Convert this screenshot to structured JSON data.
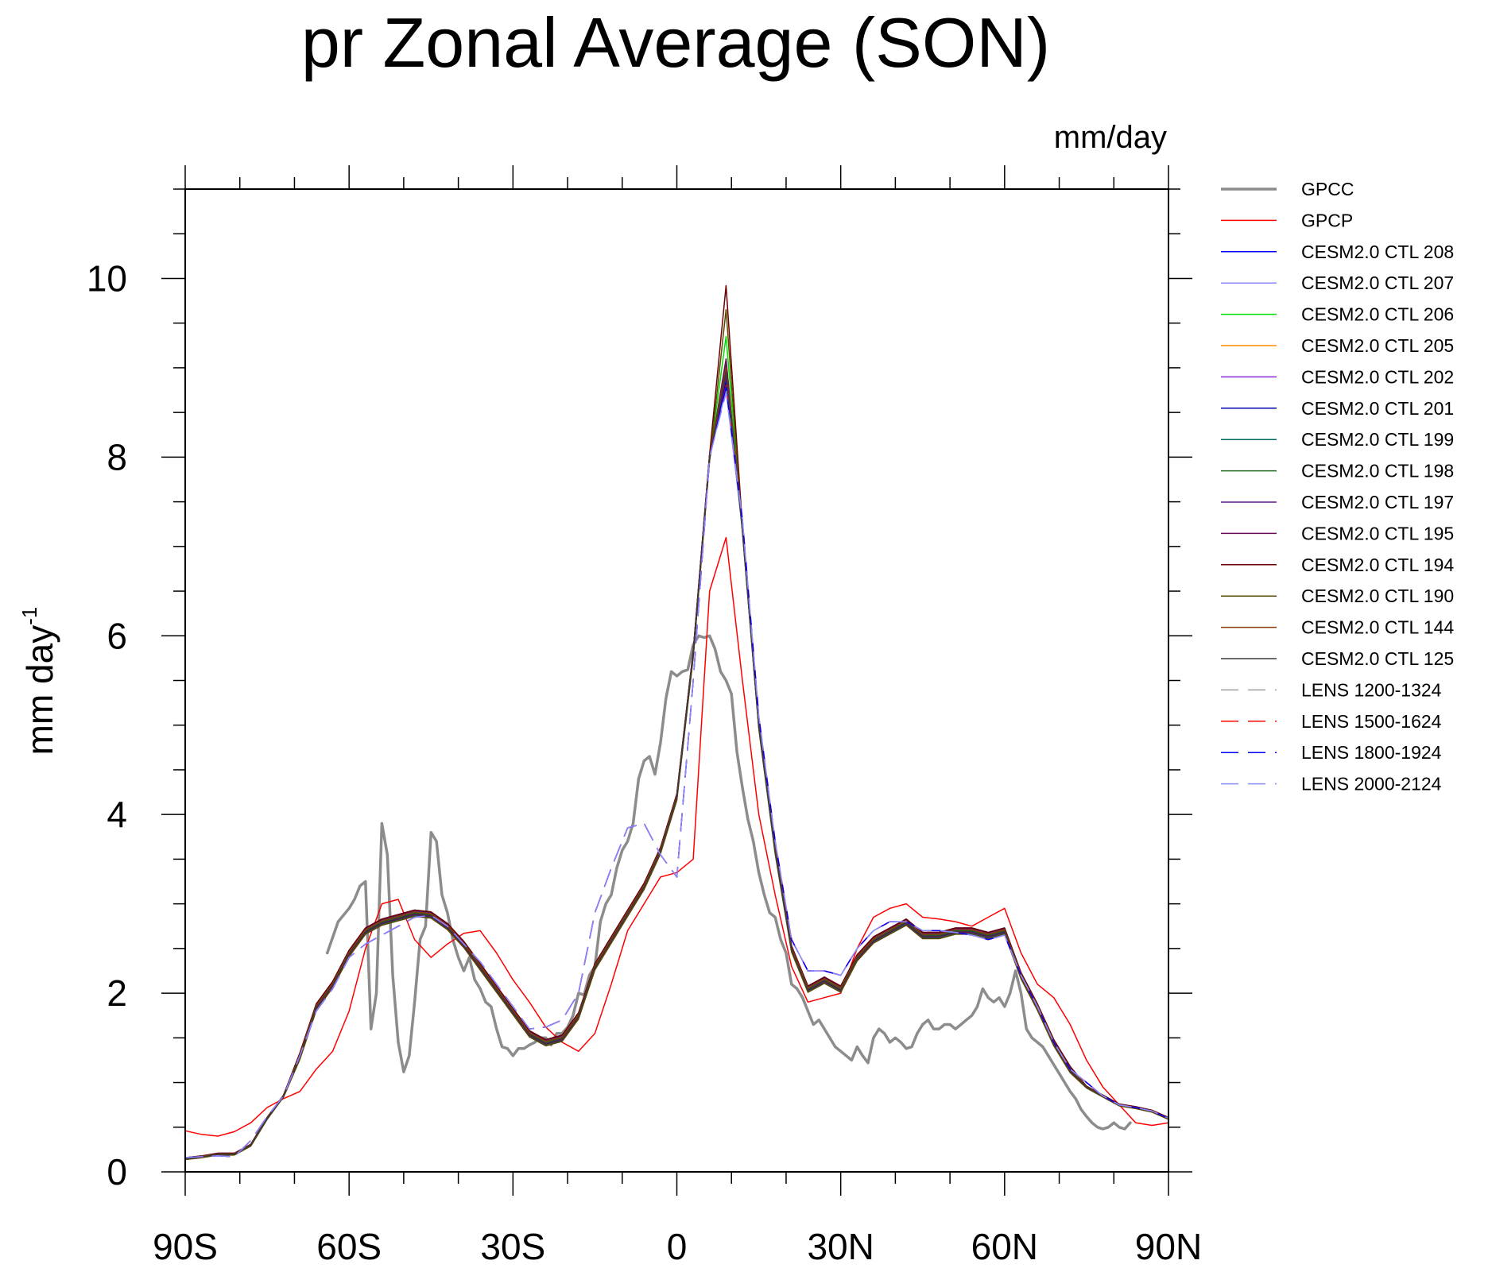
{
  "chart_data": {
    "type": "line",
    "title": "pr Zonal Average (SON)",
    "units": "mm/day",
    "ylabel_main": "mm day",
    "ylabel_sup": "-1",
    "xlabel": "",
    "xlim": [
      -90,
      90
    ],
    "ylim": [
      0,
      11
    ],
    "x_ticks": [
      -90,
      -60,
      -30,
      0,
      30,
      60,
      90
    ],
    "x_tick_labels": [
      "90S",
      "60S",
      "30S",
      "0",
      "30N",
      "60N",
      "90N"
    ],
    "y_ticks": [
      0,
      2,
      4,
      6,
      8,
      10
    ],
    "y_tick_labels": [
      "0",
      "2",
      "4",
      "6",
      "8",
      "10"
    ],
    "legend_position": "right",
    "series": [
      {
        "name": "GPCC",
        "color": "#8c8c8c",
        "width": 3.5,
        "dash": "solid",
        "x": [
          -64,
          -62,
          -60,
          -59,
          -58,
          -57,
          -56,
          -55,
          -54,
          -53,
          -52,
          -51,
          -50,
          -49,
          -48,
          -47,
          -46,
          -45,
          -44,
          -43,
          -42,
          -41,
          -40,
          -39,
          -38,
          -37,
          -36,
          -35,
          -34,
          -33,
          -32,
          -31,
          -30,
          -29,
          -28,
          -27,
          -26,
          -25,
          -24,
          -23,
          -22,
          -21,
          -20,
          -19,
          -18,
          -17,
          -16,
          -15,
          -14,
          -13,
          -12,
          -11,
          -10,
          -9,
          -8,
          -7,
          -6,
          -5,
          -4,
          -3,
          -2,
          -1,
          0,
          1,
          2,
          3,
          4,
          5,
          6,
          7,
          8,
          9,
          10,
          11,
          12,
          13,
          14,
          15,
          16,
          17,
          18,
          19,
          20,
          21,
          22,
          23,
          24,
          25,
          26,
          27,
          28,
          29,
          30,
          31,
          32,
          33,
          34,
          35,
          36,
          37,
          38,
          39,
          40,
          41,
          42,
          43,
          44,
          45,
          46,
          47,
          48,
          49,
          50,
          51,
          52,
          53,
          54,
          55,
          56,
          57,
          58,
          59,
          60,
          61,
          62,
          63,
          64,
          65,
          66,
          67,
          68,
          69,
          70,
          71,
          72,
          73,
          74,
          75,
          76,
          77,
          78,
          79,
          80,
          81,
          82,
          83
        ],
        "y": [
          2.45,
          2.8,
          2.95,
          3.05,
          3.2,
          3.25,
          1.6,
          2.0,
          3.9,
          3.55,
          2.2,
          1.45,
          1.12,
          1.3,
          1.9,
          2.6,
          2.75,
          3.8,
          3.7,
          3.1,
          2.9,
          2.6,
          2.4,
          2.25,
          2.4,
          2.15,
          2.05,
          1.9,
          1.85,
          1.6,
          1.4,
          1.38,
          1.3,
          1.38,
          1.38,
          1.42,
          1.45,
          1.5,
          1.5,
          1.42,
          1.55,
          1.55,
          1.62,
          1.75,
          2.0,
          1.98,
          2.2,
          2.3,
          2.8,
          3.0,
          3.1,
          3.4,
          3.6,
          3.7,
          3.9,
          4.4,
          4.6,
          4.65,
          4.45,
          4.8,
          5.3,
          5.6,
          5.55,
          5.6,
          5.62,
          5.9,
          6.0,
          5.98,
          6.0,
          5.85,
          5.6,
          5.5,
          5.35,
          4.7,
          4.3,
          3.95,
          3.7,
          3.35,
          3.1,
          2.9,
          2.85,
          2.6,
          2.45,
          2.1,
          2.05,
          1.95,
          1.8,
          1.65,
          1.7,
          1.6,
          1.5,
          1.4,
          1.35,
          1.3,
          1.25,
          1.4,
          1.3,
          1.22,
          1.5,
          1.6,
          1.55,
          1.45,
          1.5,
          1.45,
          1.38,
          1.4,
          1.55,
          1.65,
          1.7,
          1.6,
          1.6,
          1.65,
          1.65,
          1.6,
          1.65,
          1.7,
          1.75,
          1.85,
          2.05,
          1.95,
          1.9,
          1.95,
          1.85,
          2.0,
          2.25,
          2.0,
          1.6,
          1.5,
          1.45,
          1.4,
          1.3,
          1.2,
          1.1,
          1.0,
          0.9,
          0.82,
          0.7,
          0.62,
          0.55,
          0.5,
          0.48,
          0.5,
          0.55,
          0.5,
          0.48,
          0.55
        ]
      },
      {
        "name": "GPCP",
        "color": "#ff0000",
        "width": 1.5,
        "dash": "solid",
        "x": [
          -90,
          -87,
          -84,
          -81,
          -78,
          -75,
          -72,
          -69,
          -66,
          -63,
          -60,
          -57,
          -54,
          -51,
          -48,
          -45,
          -42,
          -39,
          -36,
          -33,
          -30,
          -27,
          -24,
          -21,
          -18,
          -15,
          -12,
          -9,
          -6,
          -3,
          0,
          3,
          6,
          9,
          12,
          15,
          18,
          21,
          24,
          27,
          30,
          33,
          36,
          39,
          42,
          45,
          48,
          51,
          54,
          57,
          60,
          63,
          66,
          69,
          72,
          75,
          78,
          81,
          84,
          87,
          90
        ],
        "y": [
          0.46,
          0.42,
          0.4,
          0.45,
          0.55,
          0.72,
          0.82,
          0.9,
          1.15,
          1.35,
          1.8,
          2.5,
          3.0,
          3.05,
          2.6,
          2.4,
          2.55,
          2.67,
          2.7,
          2.45,
          2.15,
          1.9,
          1.62,
          1.45,
          1.35,
          1.55,
          2.1,
          2.7,
          3.0,
          3.3,
          3.35,
          3.5,
          6.5,
          7.1,
          5.5,
          4.0,
          3.1,
          2.3,
          1.9,
          1.95,
          2.0,
          2.5,
          2.85,
          2.95,
          3.0,
          2.85,
          2.83,
          2.8,
          2.75,
          2.85,
          2.95,
          2.45,
          2.1,
          1.95,
          1.65,
          1.25,
          0.95,
          0.75,
          0.55,
          0.52,
          0.55
        ]
      },
      {
        "name": "CESM2.0 CTL 208",
        "color": "#0000ff",
        "width": 1.5,
        "dash": "solid",
        "delta": 0.02,
        "peak": 8.8
      },
      {
        "name": "CESM2.0 CTL 207",
        "color": "#8a8aff",
        "width": 1.5,
        "dash": "solid",
        "delta": 0.0,
        "peak": 8.75
      },
      {
        "name": "CESM2.0 CTL 206",
        "color": "#00e000",
        "width": 1.5,
        "dash": "solid",
        "delta": -0.02,
        "peak": 9.35
      },
      {
        "name": "CESM2.0 CTL 205",
        "color": "#ff8c00",
        "width": 1.5,
        "dash": "solid",
        "delta": 0.01,
        "peak": 8.9
      },
      {
        "name": "CESM2.0 CTL 202",
        "color": "#8a2be2",
        "width": 1.5,
        "dash": "solid",
        "delta": -0.01,
        "peak": 9.0
      },
      {
        "name": "CESM2.0 CTL 201",
        "color": "#0000aa",
        "width": 1.5,
        "dash": "solid",
        "delta": 0.03,
        "peak": 8.85
      },
      {
        "name": "CESM2.0 CTL 199",
        "color": "#006e5e",
        "width": 1.5,
        "dash": "solid",
        "delta": -0.03,
        "peak": 8.95
      },
      {
        "name": "CESM2.0 CTL 198",
        "color": "#1e6b1e",
        "width": 1.5,
        "dash": "solid",
        "delta": 0.0,
        "peak": 9.05
      },
      {
        "name": "CESM2.0 CTL 197",
        "color": "#5a1a8a",
        "width": 1.5,
        "dash": "solid",
        "delta": 0.02,
        "peak": 8.9
      },
      {
        "name": "CESM2.0 CTL 195",
        "color": "#6b0a5a",
        "width": 1.5,
        "dash": "solid",
        "delta": -0.02,
        "peak": 9.1
      },
      {
        "name": "CESM2.0 CTL 194",
        "color": "#6b0000",
        "width": 1.5,
        "dash": "solid",
        "delta": 0.03,
        "peak": 9.92
      },
      {
        "name": "CESM2.0 CTL 190",
        "color": "#5a4a00",
        "width": 1.5,
        "dash": "solid",
        "delta": -0.04,
        "peak": 9.65
      },
      {
        "name": "CESM2.0 CTL 144",
        "color": "#8b3a0a",
        "width": 1.5,
        "dash": "solid",
        "delta": 0.01,
        "peak": 9.0
      },
      {
        "name": "CESM2.0 CTL 125",
        "color": "#3a3a3a",
        "width": 1.5,
        "dash": "solid",
        "delta": -0.01,
        "peak": 8.95
      },
      {
        "name": "LENS 1200-1324",
        "color": "#a0a0a0",
        "width": 1.5,
        "dash": "long-dash",
        "lens": true,
        "peak": 8.75
      },
      {
        "name": "LENS 1500-1624",
        "color": "#ff0000",
        "width": 1.5,
        "dash": "long-dash",
        "lens": true,
        "peak": 8.8
      },
      {
        "name": "LENS 1800-1924",
        "color": "#0000ff",
        "width": 1.5,
        "dash": "long-dash",
        "lens": true,
        "peak": 8.78
      },
      {
        "name": "LENS 2000-2124",
        "color": "#8a8aff",
        "width": 1.5,
        "dash": "long-dash",
        "lens": true,
        "peak": 8.72
      }
    ],
    "model_base": {
      "x": [
        -90,
        -87,
        -84,
        -81,
        -78,
        -75,
        -72,
        -69,
        -66,
        -63,
        -60,
        -57,
        -54,
        -51,
        -48,
        -45,
        -42,
        -39,
        -36,
        -33,
        -30,
        -27,
        -24,
        -21,
        -18,
        -15,
        -12,
        -9,
        -6,
        -3,
        0,
        3,
        6,
        9,
        12,
        15,
        18,
        21,
        24,
        27,
        30,
        33,
        36,
        39,
        42,
        45,
        48,
        51,
        54,
        57,
        60,
        63,
        66,
        69,
        72,
        75,
        78,
        81,
        84,
        87,
        90
      ],
      "y": [
        0.15,
        0.17,
        0.2,
        0.2,
        0.3,
        0.6,
        0.85,
        1.3,
        1.85,
        2.1,
        2.45,
        2.7,
        2.8,
        2.85,
        2.9,
        2.88,
        2.75,
        2.55,
        2.3,
        2.05,
        1.8,
        1.55,
        1.45,
        1.5,
        1.75,
        2.3,
        2.6,
        2.9,
        3.2,
        3.6,
        4.2,
        5.8,
        8.0,
        8.9,
        7.2,
        5.0,
        3.6,
        2.5,
        2.05,
        2.15,
        2.05,
        2.4,
        2.6,
        2.7,
        2.8,
        2.65,
        2.65,
        2.7,
        2.7,
        2.65,
        2.7,
        2.2,
        1.85,
        1.45,
        1.15,
        0.95,
        0.85,
        0.75,
        0.72,
        0.68,
        0.6
      ]
    },
    "lens_base": {
      "x": [
        -90,
        -87,
        -84,
        -81,
        -78,
        -75,
        -72,
        -69,
        -66,
        -63,
        -60,
        -57,
        -54,
        -51,
        -48,
        -45,
        -42,
        -39,
        -36,
        -33,
        -30,
        -27,
        -24,
        -21,
        -18,
        -15,
        -12,
        -9,
        -6,
        -3,
        0,
        3,
        6,
        9,
        12,
        15,
        18,
        21,
        24,
        27,
        30,
        33,
        36,
        39,
        42,
        45,
        48,
        51,
        54,
        57,
        60,
        63,
        66,
        69,
        72,
        75,
        78,
        81,
        84,
        87,
        90
      ],
      "y": [
        0.16,
        0.17,
        0.18,
        0.17,
        0.35,
        0.62,
        0.85,
        1.3,
        1.8,
        2.05,
        2.4,
        2.55,
        2.65,
        2.75,
        2.85,
        2.87,
        2.75,
        2.55,
        2.35,
        2.1,
        1.85,
        1.6,
        1.62,
        1.7,
        2.0,
        2.9,
        3.4,
        3.85,
        3.9,
        3.55,
        3.3,
        5.5,
        8.0,
        8.8,
        7.3,
        5.1,
        3.7,
        2.6,
        2.25,
        2.25,
        2.2,
        2.5,
        2.7,
        2.8,
        2.8,
        2.7,
        2.7,
        2.68,
        2.65,
        2.6,
        2.65,
        2.2,
        1.85,
        1.45,
        1.15,
        1.0,
        0.85,
        0.75,
        0.72,
        0.68,
        0.6
      ]
    }
  }
}
